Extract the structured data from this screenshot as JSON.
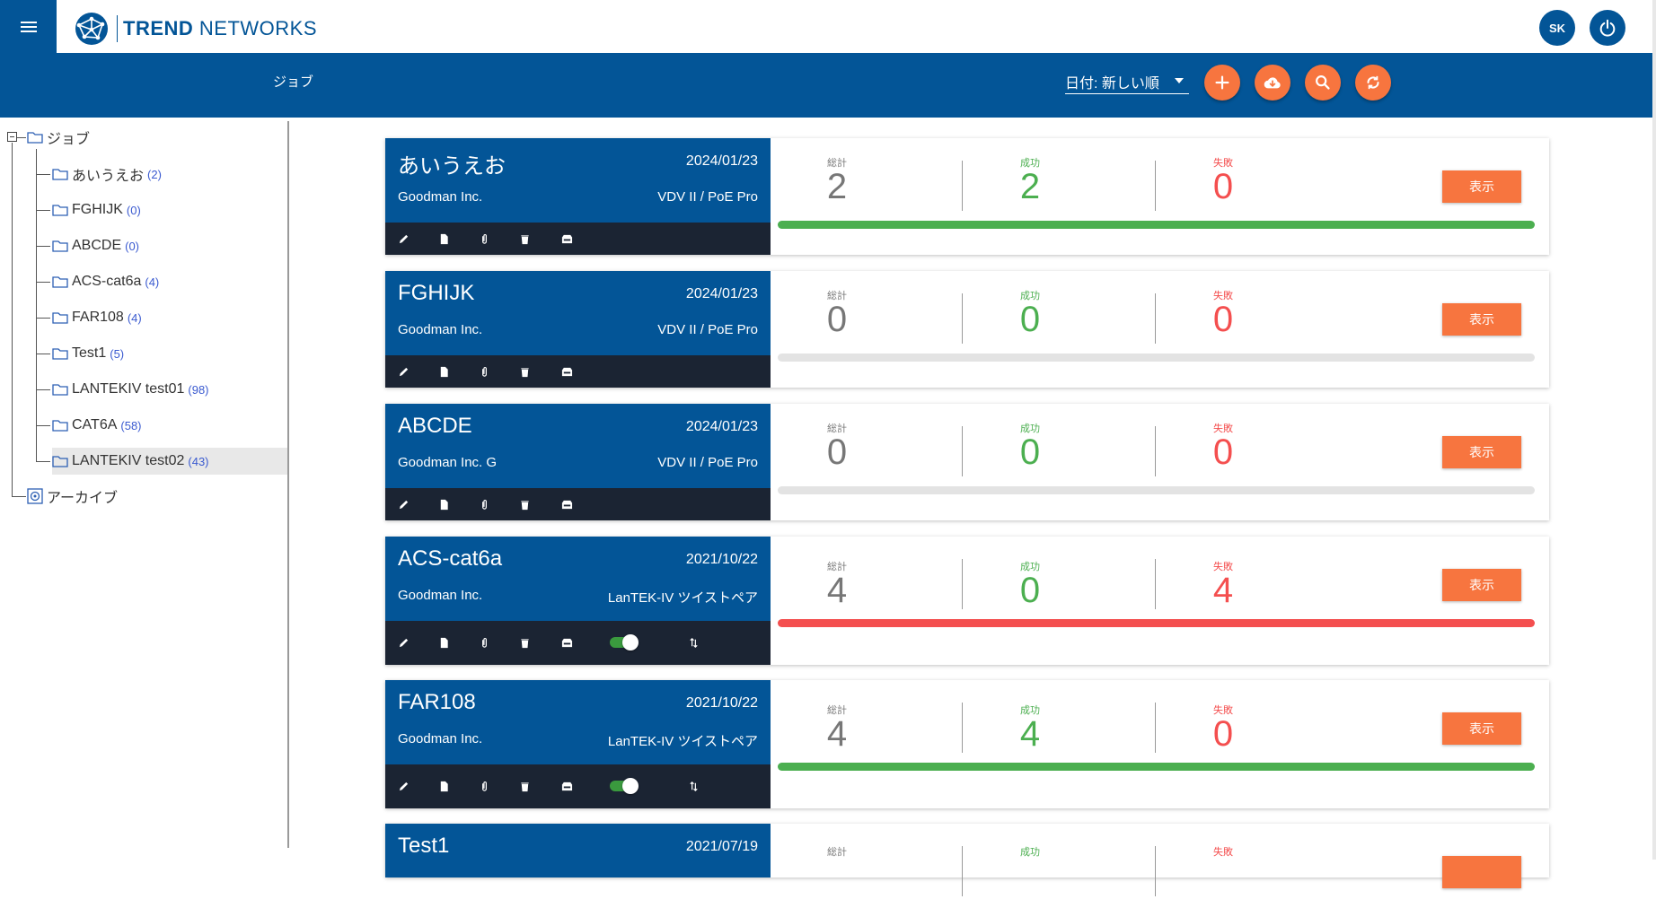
{
  "app": {
    "brand_bold": "TREND",
    "brand_rest": " NETWORKS",
    "user_initials": "SK"
  },
  "toolbar": {
    "title": "ジョブ",
    "sort_label": "日付: 新しい順"
  },
  "tree": {
    "root": "ジョブ",
    "archive": "アーカイブ",
    "items": [
      {
        "label": "あいうえお",
        "count": "(2)"
      },
      {
        "label": "FGHIJK",
        "count": "(0)"
      },
      {
        "label": "ABCDE",
        "count": "(0)"
      },
      {
        "label": "ACS-cat6a",
        "count": "(4)"
      },
      {
        "label": "FAR108",
        "count": "(4)"
      },
      {
        "label": "Test1",
        "count": "(5)"
      },
      {
        "label": "LANTEKIV test01",
        "count": "(98)"
      },
      {
        "label": "CAT6A",
        "count": "(58)"
      },
      {
        "label": "LANTEKIV test02",
        "count": "(43)"
      }
    ]
  },
  "labels": {
    "total": "総計",
    "pass": "成功",
    "fail": "失敗",
    "show": "表示"
  },
  "jobs": [
    {
      "name": "あいうえお",
      "date": "2024/01/23",
      "client": "Goodman Inc.",
      "device": "VDV II / PoE Pro",
      "total": "2",
      "pass": "2",
      "fail": "0",
      "bar": "green"
    },
    {
      "name": "FGHIJK",
      "date": "2024/01/23",
      "client": "Goodman Inc.",
      "device": "VDV II / PoE Pro",
      "total": "0",
      "pass": "0",
      "fail": "0",
      "bar": "empty"
    },
    {
      "name": "ABCDE",
      "date": "2024/01/23",
      "client": "Goodman Inc. G",
      "device": "VDV II / PoE Pro",
      "total": "0",
      "pass": "0",
      "fail": "0",
      "bar": "empty"
    },
    {
      "name": "ACS-cat6a",
      "date": "2021/10/22",
      "client": "Goodman Inc.",
      "device": "LanTEK-IV ツイストペア",
      "total": "4",
      "pass": "0",
      "fail": "4",
      "bar": "red"
    },
    {
      "name": "FAR108",
      "date": "2021/10/22",
      "client": "Goodman Inc.",
      "device": "LanTEK-IV ツイストペア",
      "total": "4",
      "pass": "4",
      "fail": "0",
      "bar": "green"
    },
    {
      "name": "Test1",
      "date": "2021/07/19",
      "client": "",
      "device": "",
      "total": "",
      "pass": "",
      "fail": "",
      "bar": "empty"
    }
  ],
  "colors": {
    "brand": "#035597",
    "accent": "#f7753f",
    "pass": "#4caf50",
    "fail": "#f44f4f",
    "action_bar": "#1b2433"
  }
}
